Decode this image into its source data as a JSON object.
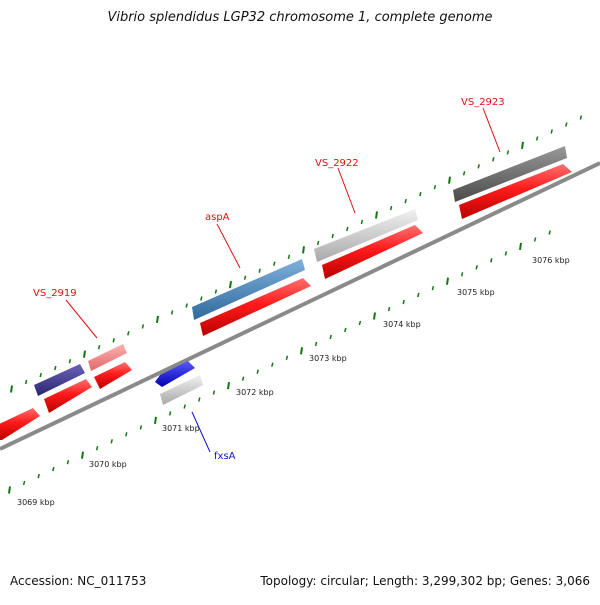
{
  "title": "Vibrio splendidus LGP32 chromosome 1, complete genome",
  "footer": {
    "accession": "Accession: NC_011753",
    "summary": "Topology: circular; Length: 3,299,302 bp; Genes: 3,066"
  },
  "scale": {
    "unit": "kbp",
    "tick_labels": [
      "3069 kbp",
      "3070 kbp",
      "3071 kbp",
      "3072 kbp",
      "3073 kbp",
      "3074 kbp",
      "3075 kbp",
      "3076 kbp"
    ]
  },
  "gene_labels": [
    {
      "id": "VS_2919",
      "text": "VS_2919",
      "color": "#dd1111"
    },
    {
      "id": "aspA",
      "text": "aspA",
      "color": "#dd1111"
    },
    {
      "id": "VS_2922",
      "text": "VS_2922",
      "color": "#dd1111"
    },
    {
      "id": "VS_2923",
      "text": "VS_2923",
      "color": "#dd1111"
    },
    {
      "id": "fxsA",
      "text": "fxsA",
      "color": "#1111cc"
    }
  ],
  "colors": {
    "backbone": "#8a8a8a",
    "cds": "#ee1111",
    "tick": "#117711",
    "gene_dark_blue": "#3b3585",
    "gene_pink": "#f08080",
    "gene_steel_blue": "#4682b4",
    "gene_light_gray": "#c8c8c8",
    "gene_dark_gray": "#6e6e6e",
    "gene_blue": "#1a1aee"
  }
}
